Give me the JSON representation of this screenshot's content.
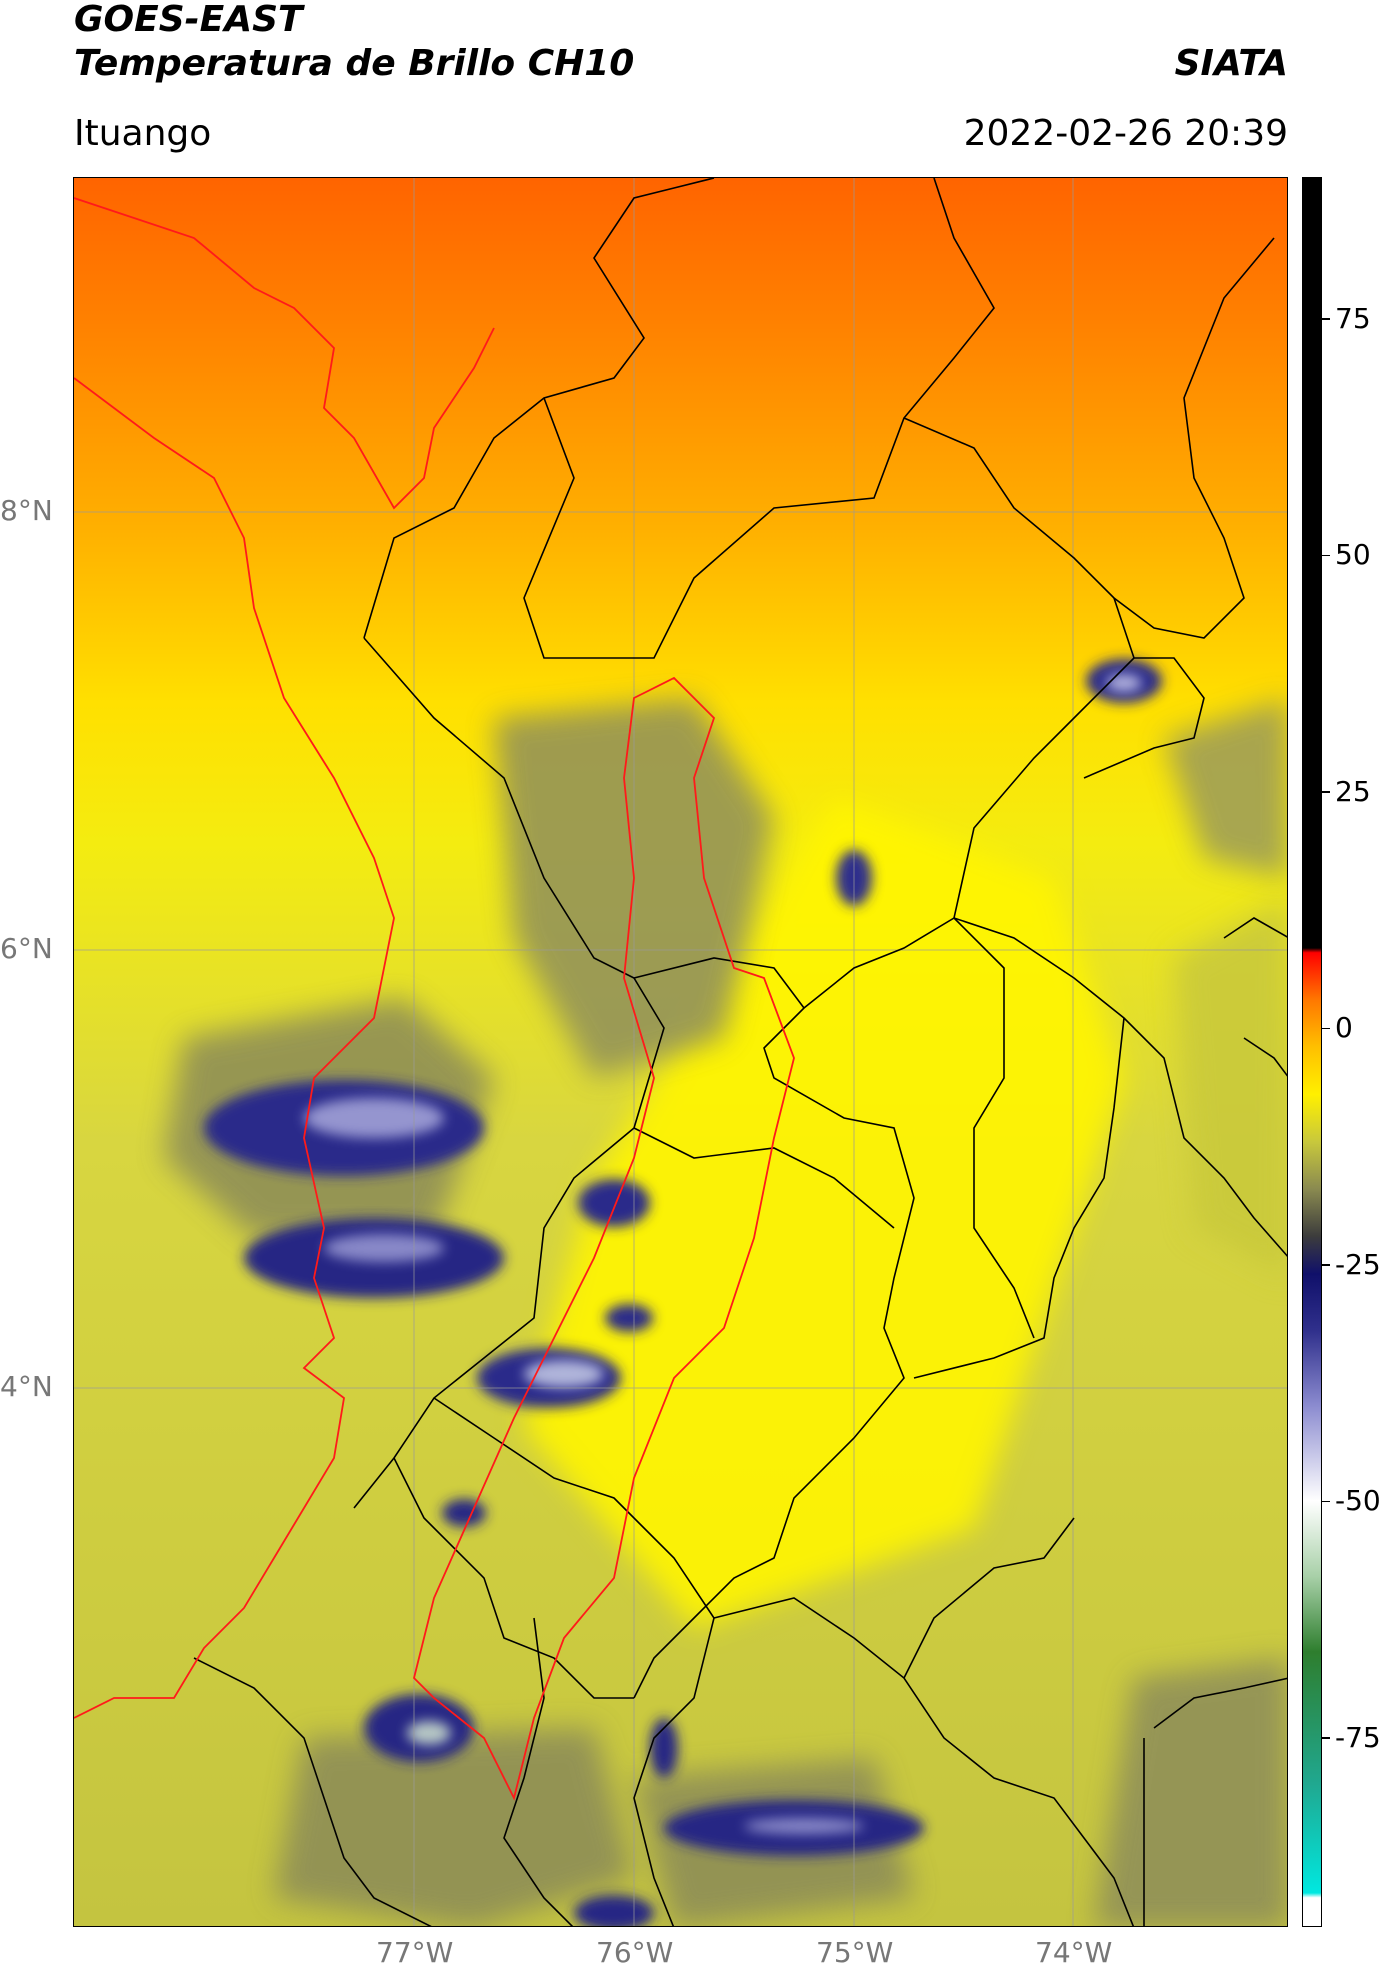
{
  "header": {
    "title_line1": "GOES-EAST",
    "title_line2": "Temperatura de Brillo CH10",
    "brand": "SIATA",
    "location": "Ituango",
    "datetime": "2022-02-26 20:39"
  },
  "map": {
    "lat_labels": [
      "8°N",
      "6°N",
      "4°N"
    ],
    "lon_labels": [
      "77°W",
      "76°W",
      "75°W",
      "74°W"
    ],
    "colors": {
      "warm_top": "#ff6a00",
      "orange": "#ffa000",
      "yellow": "#fff200",
      "olive": "#c8c83a",
      "grey_olive": "#8c8c5a",
      "navy": "#1c1c82",
      "lavender": "#a4a4d8",
      "border_black": "#000000",
      "border_red": "#ff1a1a",
      "gridline": "#999999"
    }
  },
  "colorbar": {
    "tick_labels": [
      "75",
      "50",
      "25",
      "0",
      "-25",
      "-50",
      "-75"
    ],
    "tick_values": [
      75,
      50,
      25,
      0,
      -25,
      -50,
      -75
    ],
    "range": [
      -95,
      90
    ],
    "stops": [
      {
        "v": -95,
        "c": "#ffffff"
      },
      {
        "v": -92,
        "c": "#ffffff"
      },
      {
        "v": -91.5,
        "c": "#00e8e0"
      },
      {
        "v": -80,
        "c": "#20a890"
      },
      {
        "v": -66,
        "c": "#2e7e2e"
      },
      {
        "v": -58,
        "c": "#a8d0a8"
      },
      {
        "v": -50,
        "c": "#ffffff"
      },
      {
        "v": -40,
        "c": "#8c8cd0"
      },
      {
        "v": -32,
        "c": "#30308c"
      },
      {
        "v": -26,
        "c": "#10106a"
      },
      {
        "v": -22,
        "c": "#3c3c3c"
      },
      {
        "v": -17,
        "c": "#8a8a50"
      },
      {
        "v": -12,
        "c": "#c8c83c"
      },
      {
        "v": -7,
        "c": "#fff000"
      },
      {
        "v": -2,
        "c": "#ffc000"
      },
      {
        "v": 3,
        "c": "#ff7800"
      },
      {
        "v": 8,
        "c": "#ff0000"
      },
      {
        "v": 8.5,
        "c": "#000000"
      },
      {
        "v": 90,
        "c": "#000000"
      }
    ]
  }
}
